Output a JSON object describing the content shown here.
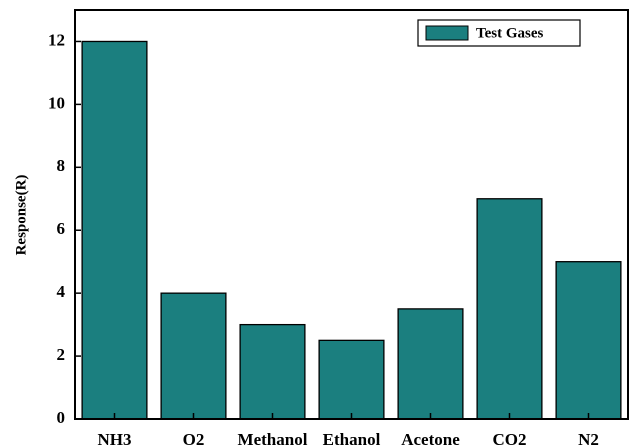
{
  "chart_data": {
    "type": "bar",
    "y_label": "Response(R)",
    "categories": [
      "NH3",
      "O2",
      "Methanol",
      "Ethanol",
      "Acetone",
      "CO2",
      "N2"
    ],
    "series": [
      {
        "name": "Test Gases",
        "color": "#1b7f7f",
        "values": [
          12,
          4,
          3,
          2.5,
          3.5,
          7,
          5
        ]
      }
    ],
    "ylim": [
      0,
      13
    ],
    "yticks": [
      0,
      2,
      4,
      6,
      8,
      10,
      12
    ],
    "legend": "upper-right"
  }
}
